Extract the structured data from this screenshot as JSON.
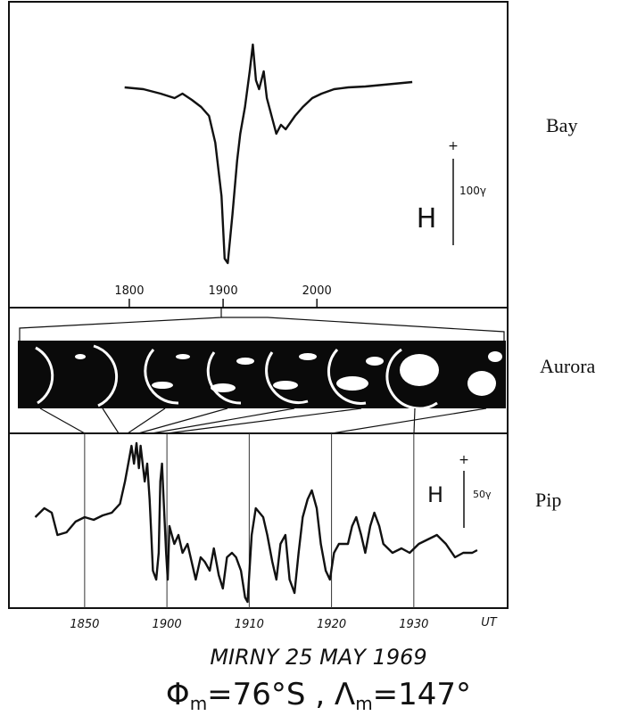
{
  "chart_data": [
    {
      "type": "line",
      "panel_label": "Bay",
      "axis_label": "H",
      "scale_sign": "+",
      "scale_label": "100γ",
      "x": [
        1077,
        1089,
        1100,
        1109,
        1114,
        1120,
        1126,
        1131,
        1135,
        1139,
        1141,
        1143,
        1146,
        1149,
        1151,
        1154,
        1157,
        1159,
        1161,
        1163,
        1166,
        1168,
        1171,
        1174,
        1177,
        1180,
        1186,
        1191,
        1197,
        1203,
        1211,
        1220,
        1231,
        1243,
        1261
      ],
      "values": [
        0,
        -2,
        -7,
        -12,
        -7,
        -14,
        -22,
        -32,
        -62,
        -122,
        -192,
        -197,
        -142,
        -82,
        -52,
        -22,
        18,
        48,
        8,
        -2,
        18,
        -12,
        -32,
        -52,
        -42,
        -47,
        -32,
        -22,
        -12,
        -7,
        -2,
        0,
        1,
        3,
        6
      ],
      "color": "#111111",
      "xlim": [
        1003,
        1322
      ],
      "ylim": [
        -247,
        98
      ],
      "xticks": [
        {
          "value": 1080,
          "label": "1800"
        },
        {
          "value": 1140,
          "label": "1900"
        },
        {
          "value": 1200,
          "label": "2000"
        }
      ],
      "grid": false
    },
    {
      "type": "line",
      "panel_label": "Pip",
      "axis_label": "H",
      "scale_sign": "+",
      "scale_label": "50γ",
      "xlabel": "UT",
      "x": [
        1124.0,
        1125.1,
        1126.0,
        1126.7,
        1127.8,
        1128.9,
        1130,
        1131.1,
        1132.2,
        1133.3,
        1134.3,
        1134.9,
        1135.4,
        1135.7,
        1136.0,
        1136.3,
        1136.6,
        1136.8,
        1137.3,
        1137.6,
        1137.9,
        1138.1,
        1138.3,
        1138.7,
        1139.0,
        1139.2,
        1139.4,
        1139.6,
        1139.9,
        1140.1,
        1140.3,
        1140.6,
        1140.9,
        1141.4,
        1141.9,
        1142.5,
        1143.0,
        1143.5,
        1144.1,
        1144.6,
        1145.2,
        1145.7,
        1146.3,
        1146.8,
        1147.3,
        1147.9,
        1148.4,
        1149.0,
        1149.5,
        1149.8,
        1150.3,
        1150.8,
        1151.7,
        1152.2,
        1152.8,
        1153.3,
        1153.8,
        1154.4,
        1154.9,
        1155.5,
        1156.0,
        1156.5,
        1157.1,
        1157.6,
        1158.2,
        1158.7,
        1159.3,
        1159.8,
        1160.3,
        1160.9,
        1162.0,
        1162.5,
        1163.0,
        1163.6,
        1164.1,
        1164.7,
        1165.2,
        1165.8,
        1166.3,
        1167.4,
        1168.5,
        1169.5,
        1170.6,
        1171.7,
        1172.8,
        1173.9,
        1175.0,
        1176.0,
        1177.1,
        1177.7
      ],
      "values": [
        0,
        10,
        5,
        -20,
        -17,
        -5,
        0,
        -3,
        2,
        5,
        15,
        40,
        65,
        80,
        60,
        83,
        55,
        80,
        40,
        60,
        20,
        -20,
        -60,
        -70,
        -40,
        40,
        60,
        20,
        -40,
        -70,
        -10,
        -20,
        -30,
        -20,
        -40,
        -30,
        -50,
        -70,
        -45,
        -50,
        -60,
        -35,
        -65,
        -80,
        -45,
        -40,
        -45,
        -60,
        -90,
        -95,
        -20,
        10,
        0,
        -20,
        -50,
        -70,
        -30,
        -20,
        -70,
        -85,
        -40,
        0,
        20,
        30,
        10,
        -30,
        -60,
        -70,
        -40,
        -30,
        -30,
        -10,
        0,
        -20,
        -40,
        -10,
        5,
        -10,
        -30,
        -40,
        -35,
        -40,
        -30,
        -25,
        -20,
        -30,
        -45,
        -40,
        -40,
        -37
      ],
      "color": "#111111",
      "xlim": [
        1120.8,
        1181.4
      ],
      "ylim": [
        -102,
        94
      ],
      "xticks": [
        {
          "value": 1130,
          "label": "1850"
        },
        {
          "value": 1140,
          "label": "1900"
        },
        {
          "value": 1150,
          "label": "1910"
        },
        {
          "value": 1160,
          "label": "1920"
        },
        {
          "value": 1170,
          "label": "1930"
        }
      ],
      "grid": true
    }
  ],
  "aurora": {
    "label": "Aurora"
  },
  "footer": {
    "station": "MIRNY 25 MAY 1969",
    "coords": [
      {
        "text": "Φ"
      },
      {
        "sub": "m"
      },
      {
        "text": "=76°S , Λ"
      },
      {
        "sub": "m"
      },
      {
        "text": "=147°"
      }
    ]
  }
}
